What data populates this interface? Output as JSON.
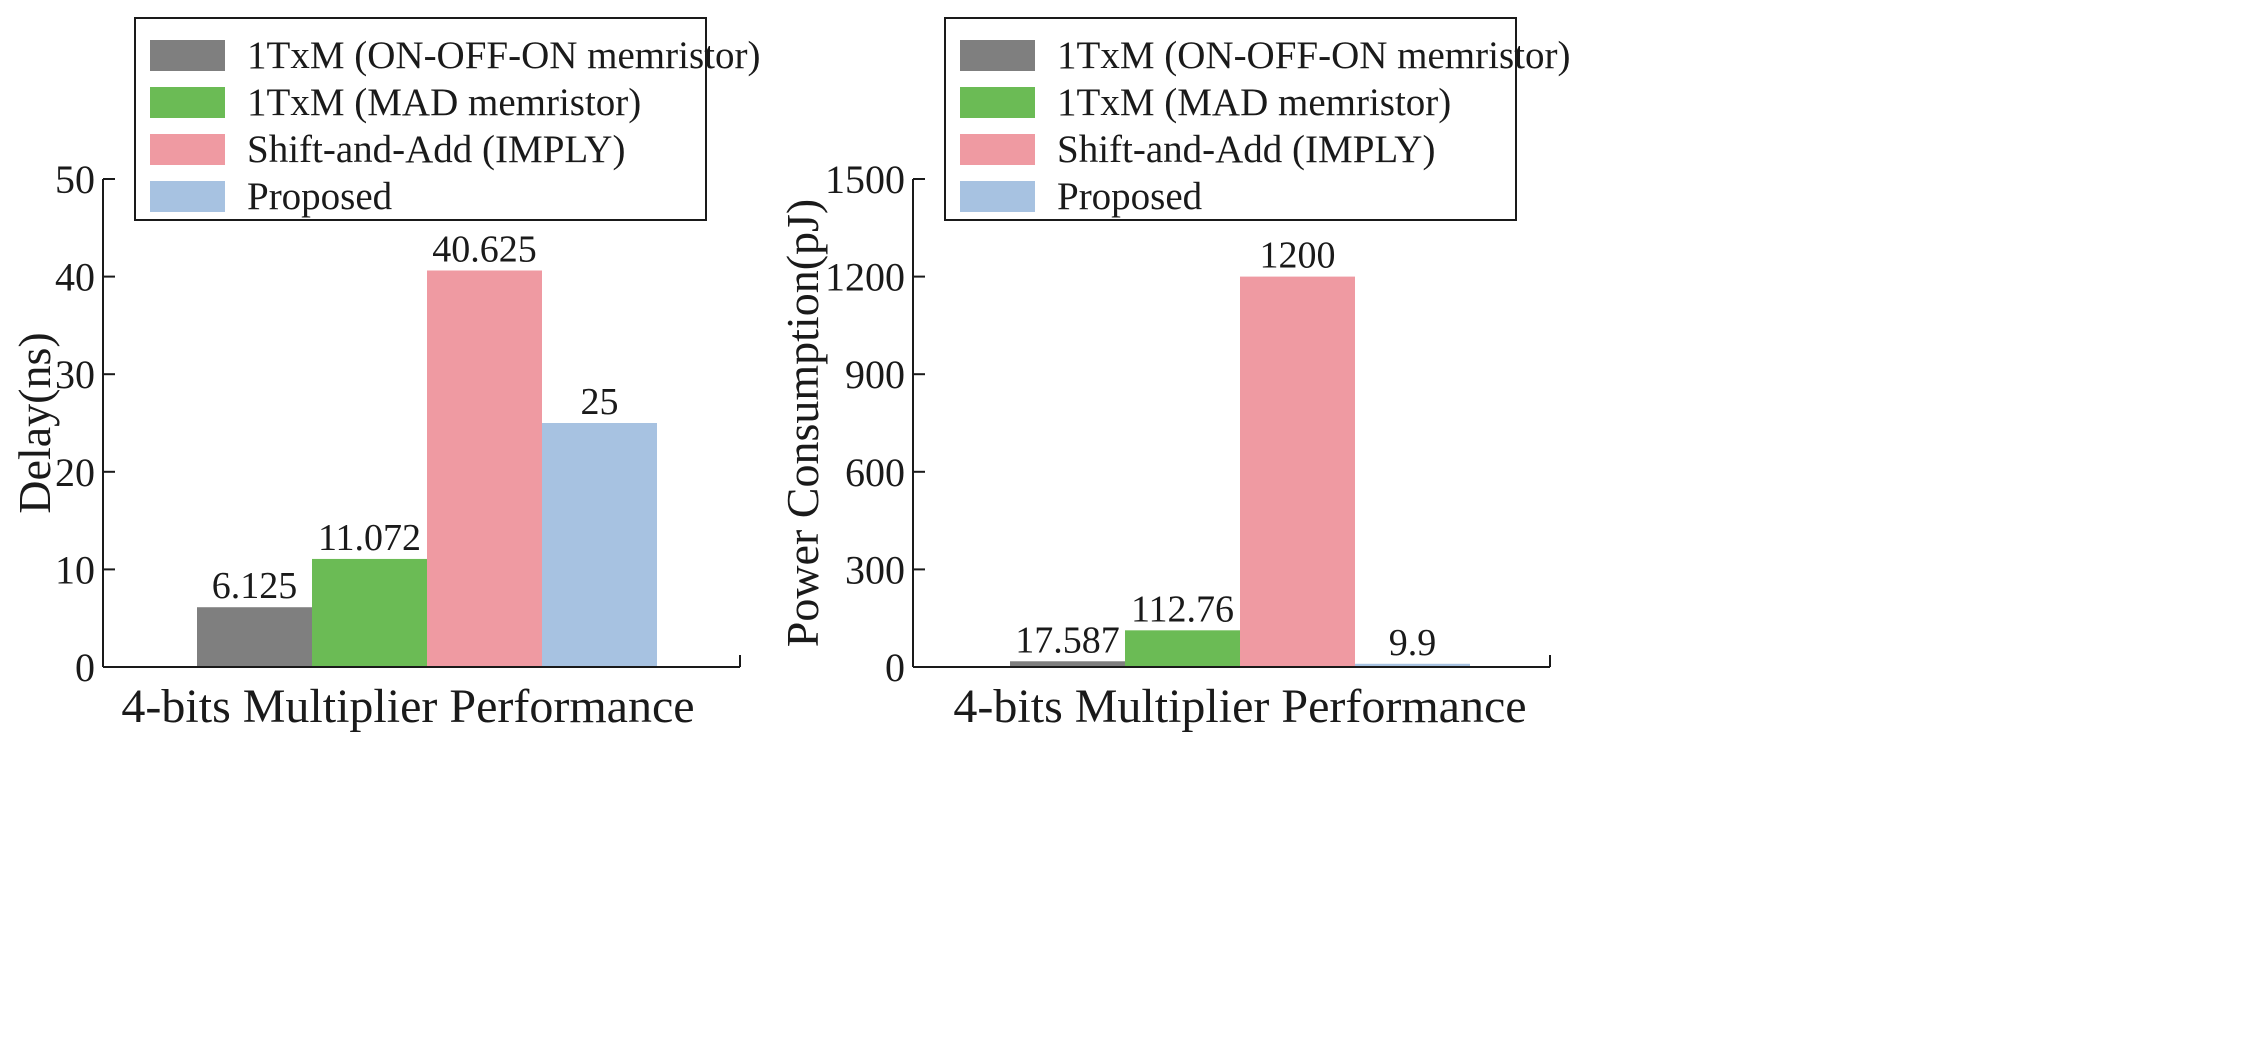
{
  "colors": {
    "gray": "#7f7f7f",
    "green": "#6bbb55",
    "pink": "#ef9aa2",
    "blue": "#a7c2e1",
    "axis": "#1a1a1a"
  },
  "chart_data": [
    {
      "type": "bar",
      "title": "",
      "xlabel": "4-bits Multiplier Performance",
      "ylabel": "Delay(ns)",
      "ylim": [
        0,
        50
      ],
      "yticks": [
        "0",
        "10",
        "20",
        "30",
        "40",
        "50"
      ],
      "ytick_values": [
        0,
        10,
        20,
        30,
        40,
        50
      ],
      "categories": [
        "4-bits Multiplier Performance"
      ],
      "legend_position": "top",
      "series": [
        {
          "name": "1TxM (ON-OFF-ON memristor)",
          "values": [
            6.125
          ],
          "label": "6.125",
          "color": "gray"
        },
        {
          "name": "1TxM (MAD memristor)",
          "values": [
            11.072
          ],
          "label": "11.072",
          "color": "green"
        },
        {
          "name": "Shift-and-Add (IMPLY)",
          "values": [
            40.625
          ],
          "label": "40.625",
          "color": "pink"
        },
        {
          "name": "Proposed",
          "values": [
            25
          ],
          "label": "25",
          "color": "blue"
        }
      ]
    },
    {
      "type": "bar",
      "title": "",
      "xlabel": "4-bits Multiplier Performance",
      "ylabel": "Power Consumption(pJ)",
      "ylim": [
        0,
        1500
      ],
      "yticks": [
        "0",
        "300",
        "600",
        "900",
        "1200",
        "1500"
      ],
      "ytick_values": [
        0,
        300,
        600,
        900,
        1200,
        1500
      ],
      "categories": [
        "4-bits Multiplier Performance"
      ],
      "legend_position": "top",
      "series": [
        {
          "name": "1TxM (ON-OFF-ON memristor)",
          "values": [
            17.587
          ],
          "label": "17.587",
          "color": "gray"
        },
        {
          "name": "1TxM (MAD memristor)",
          "values": [
            112.76
          ],
          "label": "112.76",
          "color": "green"
        },
        {
          "name": "Shift-and-Add (IMPLY)",
          "values": [
            1200
          ],
          "label": "1200",
          "color": "pink"
        },
        {
          "name": "Proposed",
          "values": [
            9.9
          ],
          "label": "9.9",
          "color": "blue"
        }
      ]
    }
  ]
}
